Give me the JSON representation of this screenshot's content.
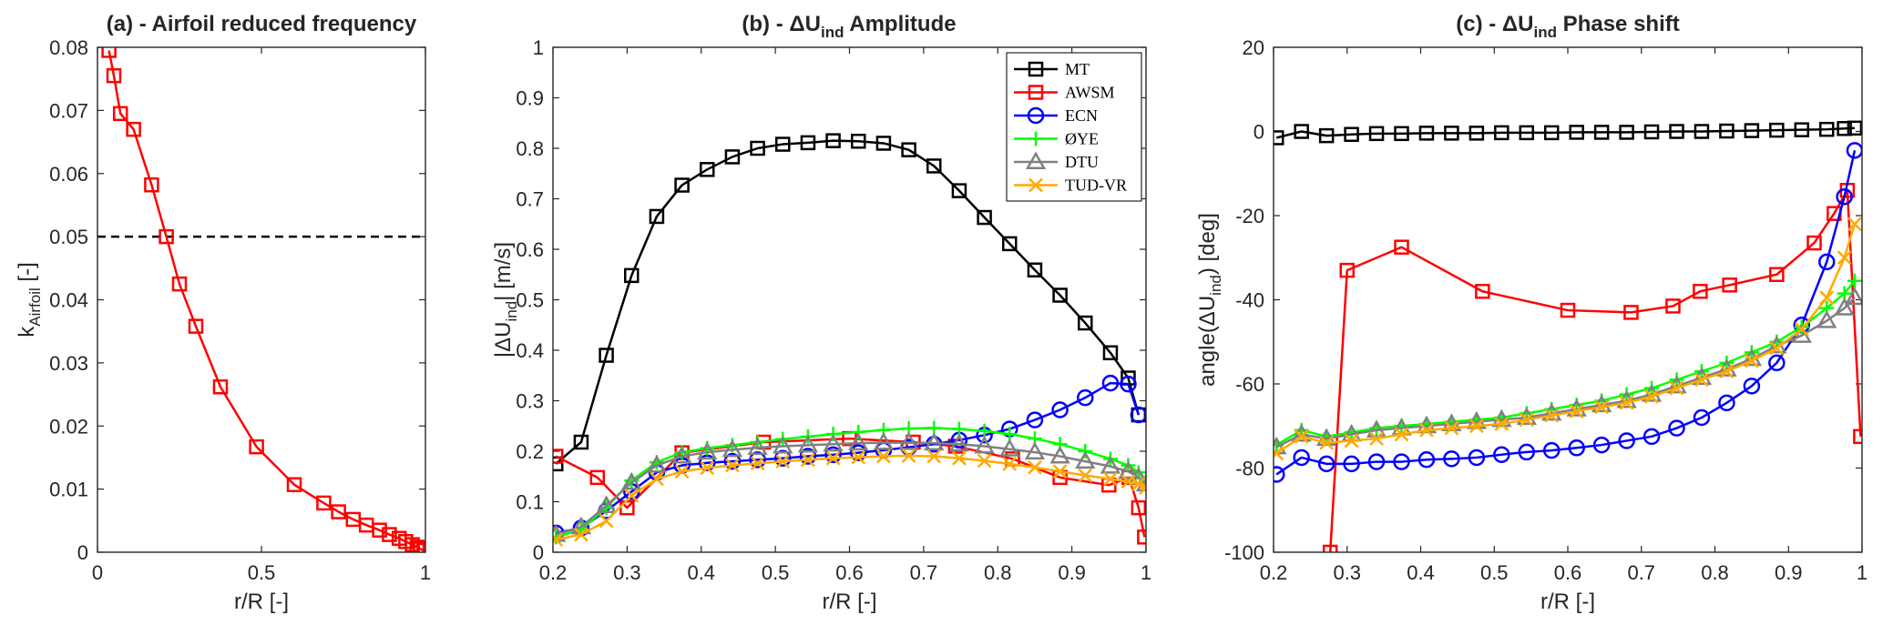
{
  "chart_data": [
    {
      "type": "line",
      "title": "(a) - Airfoil reduced frequency",
      "xlabel": "r/R [-]",
      "ylabel": "k",
      "ylabel_sub": "Airfoil",
      "ylabel_suffix": " [-]",
      "xlim": [
        0,
        1
      ],
      "ylim": [
        0,
        0.08
      ],
      "xticks": [
        0,
        0.5,
        1
      ],
      "xtick_labels": [
        "0",
        "0.5",
        "1"
      ],
      "yticks": [
        0,
        0.01,
        0.02,
        0.03,
        0.04,
        0.05,
        0.06,
        0.07,
        0.08
      ],
      "ytick_labels": [
        "0",
        "0.01",
        "0.02",
        "0.03",
        "0.04",
        "0.05",
        "0.06",
        "0.07",
        "0.08"
      ],
      "grid": false,
      "legend": false,
      "hline": {
        "y": 0.05,
        "color": "#000000",
        "style": "dashed"
      },
      "series": [
        {
          "name": "Airfoil reduced frequency",
          "color": "#ff0000",
          "marker": "square",
          "x": [
            0.035,
            0.05,
            0.07,
            0.11,
            0.165,
            0.21,
            0.25,
            0.3,
            0.375,
            0.485,
            0.6,
            0.69,
            0.735,
            0.78,
            0.82,
            0.86,
            0.89,
            0.92,
            0.94,
            0.96,
            0.975,
            0.985,
            0.995
          ],
          "y": [
            0.0795,
            0.0755,
            0.0695,
            0.067,
            0.0582,
            0.05,
            0.0425,
            0.0358,
            0.0262,
            0.0167,
            0.0107,
            0.0078,
            0.0064,
            0.0052,
            0.0043,
            0.0035,
            0.0028,
            0.0022,
            0.0017,
            0.0012,
            0.0008,
            0.0005,
            0.0003
          ]
        }
      ]
    },
    {
      "type": "line",
      "title_prefix": "(b) - ",
      "title_delta": "ΔU",
      "title_sub": "ind",
      "title_suffix": " Amplitude",
      "xlabel": "r/R [-]",
      "ylabel_prefix": "|ΔU",
      "ylabel_sub": "ind",
      "ylabel_suffix": "| [m/s]",
      "xlim": [
        0.2,
        1
      ],
      "ylim": [
        0,
        1
      ],
      "xticks": [
        0.2,
        0.3,
        0.4,
        0.5,
        0.6,
        0.7,
        0.8,
        0.9,
        1
      ],
      "xtick_labels": [
        "0.2",
        "0.3",
        "0.4",
        "0.5",
        "0.6",
        "0.7",
        "0.8",
        "0.9",
        "1"
      ],
      "yticks": [
        0,
        0.1,
        0.2,
        0.3,
        0.4,
        0.5,
        0.6,
        0.7,
        0.8,
        0.9,
        1
      ],
      "ytick_labels": [
        "0",
        "0.1",
        "0.2",
        "0.3",
        "0.4",
        "0.5",
        "0.6",
        "0.7",
        "0.8",
        "0.9",
        "1"
      ],
      "grid": false,
      "legend": "top-right",
      "series": [
        {
          "name": "MT",
          "color": "#000000",
          "marker": "square",
          "x": [
            0.204,
            0.238,
            0.272,
            0.306,
            0.34,
            0.374,
            0.408,
            0.442,
            0.476,
            0.51,
            0.544,
            0.578,
            0.612,
            0.646,
            0.68,
            0.714,
            0.748,
            0.782,
            0.816,
            0.85,
            0.884,
            0.918,
            0.952,
            0.976,
            0.99
          ],
          "y": [
            0.175,
            0.218,
            0.39,
            0.548,
            0.665,
            0.727,
            0.758,
            0.783,
            0.8,
            0.808,
            0.811,
            0.815,
            0.814,
            0.81,
            0.797,
            0.765,
            0.716,
            0.663,
            0.611,
            0.559,
            0.509,
            0.454,
            0.395,
            0.345,
            0.272
          ]
        },
        {
          "name": "AWSM",
          "color": "#ff0000",
          "marker": "square",
          "x": [
            0.204,
            0.26,
            0.3,
            0.374,
            0.484,
            0.6,
            0.686,
            0.743,
            0.82,
            0.884,
            0.95,
            0.977,
            0.99,
            0.998
          ],
          "y": [
            0.19,
            0.148,
            0.088,
            0.197,
            0.218,
            0.225,
            0.218,
            0.21,
            0.185,
            0.148,
            0.133,
            0.148,
            0.088,
            0.03
          ]
        },
        {
          "name": "ECN",
          "color": "#0000ff",
          "marker": "circle",
          "x": [
            0.204,
            0.238,
            0.272,
            0.306,
            0.34,
            0.374,
            0.408,
            0.442,
            0.476,
            0.51,
            0.544,
            0.578,
            0.612,
            0.646,
            0.68,
            0.714,
            0.748,
            0.782,
            0.816,
            0.85,
            0.884,
            0.918,
            0.952,
            0.976,
            0.99
          ],
          "y": [
            0.038,
            0.048,
            0.082,
            0.12,
            0.158,
            0.172,
            0.177,
            0.18,
            0.183,
            0.186,
            0.19,
            0.193,
            0.197,
            0.202,
            0.208,
            0.214,
            0.222,
            0.232,
            0.244,
            0.262,
            0.282,
            0.306,
            0.335,
            0.333,
            0.272
          ]
        },
        {
          "name": "ØYE",
          "color": "#00ff00",
          "marker": "plus",
          "x": [
            0.204,
            0.238,
            0.272,
            0.306,
            0.34,
            0.374,
            0.408,
            0.442,
            0.476,
            0.51,
            0.544,
            0.578,
            0.612,
            0.646,
            0.68,
            0.714,
            0.748,
            0.782,
            0.816,
            0.85,
            0.884,
            0.918,
            0.952,
            0.976,
            0.99,
            1.0
          ],
          "y": [
            0.03,
            0.045,
            0.088,
            0.142,
            0.178,
            0.198,
            0.206,
            0.212,
            0.218,
            0.224,
            0.229,
            0.234,
            0.238,
            0.242,
            0.245,
            0.246,
            0.244,
            0.24,
            0.234,
            0.225,
            0.214,
            0.2,
            0.185,
            0.172,
            0.158,
            0.14
          ]
        },
        {
          "name": "DTU",
          "color": "#808080",
          "marker": "triangle",
          "x": [
            0.204,
            0.238,
            0.272,
            0.306,
            0.34,
            0.374,
            0.408,
            0.442,
            0.476,
            0.51,
            0.544,
            0.578,
            0.612,
            0.646,
            0.68,
            0.714,
            0.748,
            0.782,
            0.816,
            0.85,
            0.884,
            0.918,
            0.952,
            0.976,
            0.99,
            1.0
          ],
          "y": [
            0.035,
            0.05,
            0.092,
            0.138,
            0.172,
            0.19,
            0.198,
            0.203,
            0.207,
            0.21,
            0.212,
            0.214,
            0.216,
            0.217,
            0.217,
            0.216,
            0.214,
            0.21,
            0.204,
            0.198,
            0.19,
            0.18,
            0.17,
            0.16,
            0.148,
            0.135
          ]
        },
        {
          "name": "TUD-VR",
          "color": "#ffaa00",
          "marker": "x",
          "x": [
            0.204,
            0.238,
            0.272,
            0.306,
            0.34,
            0.374,
            0.408,
            0.442,
            0.476,
            0.51,
            0.544,
            0.578,
            0.612,
            0.646,
            0.68,
            0.714,
            0.748,
            0.782,
            0.816,
            0.85,
            0.884,
            0.918,
            0.952,
            0.976,
            0.99,
            1.0
          ],
          "y": [
            0.025,
            0.035,
            0.062,
            0.112,
            0.145,
            0.16,
            0.167,
            0.172,
            0.176,
            0.18,
            0.183,
            0.186,
            0.188,
            0.19,
            0.191,
            0.19,
            0.186,
            0.181,
            0.175,
            0.168,
            0.16,
            0.152,
            0.145,
            0.14,
            0.135,
            0.128
          ]
        }
      ]
    },
    {
      "type": "line",
      "title_prefix": "(c) - ",
      "title_delta": "ΔU",
      "title_sub": "ind",
      "title_suffix": " Phase shift",
      "xlabel": "r/R [-]",
      "ylabel_prefix": "angle(ΔU",
      "ylabel_sub": "ind",
      "ylabel_suffix": ") [deg]",
      "xlim": [
        0.2,
        1
      ],
      "ylim": [
        -100,
        20
      ],
      "xticks": [
        0.2,
        0.3,
        0.4,
        0.5,
        0.6,
        0.7,
        0.8,
        0.9,
        1
      ],
      "xtick_labels": [
        "0.2",
        "0.3",
        "0.4",
        "0.5",
        "0.6",
        "0.7",
        "0.8",
        "0.9",
        "1"
      ],
      "yticks": [
        -100,
        -80,
        -60,
        -40,
        -20,
        0,
        20
      ],
      "ytick_labels": [
        "-100",
        "-80",
        "-60",
        "-40",
        "-20",
        "0",
        "20"
      ],
      "grid": false,
      "legend": false,
      "series": [
        {
          "name": "MT",
          "color": "#000000",
          "marker": "square",
          "x": [
            0.204,
            0.238,
            0.272,
            0.306,
            0.34,
            0.374,
            0.408,
            0.442,
            0.476,
            0.51,
            0.544,
            0.578,
            0.612,
            0.646,
            0.68,
            0.714,
            0.748,
            0.782,
            0.816,
            0.85,
            0.884,
            0.918,
            0.952,
            0.976,
            0.99
          ],
          "y": [
            -1.5,
            0,
            -1,
            -0.7,
            -0.5,
            -0.5,
            -0.4,
            -0.4,
            -0.4,
            -0.3,
            -0.3,
            -0.3,
            -0.2,
            -0.2,
            -0.2,
            -0.1,
            0,
            0,
            0.1,
            0.2,
            0.3,
            0.4,
            0.5,
            0.7,
            0.8
          ]
        },
        {
          "name": "AWSM",
          "color": "#ff0000",
          "marker": "square",
          "x": [
            0.277,
            0.3,
            0.374,
            0.484,
            0.6,
            0.686,
            0.743,
            0.78,
            0.82,
            0.884,
            0.935,
            0.962,
            0.98,
            0.998
          ],
          "y": [
            -100,
            -33,
            -27.5,
            -38,
            -42.5,
            -43,
            -41.5,
            -38,
            -36.5,
            -34,
            -26.5,
            -19.5,
            -14,
            -72.5
          ]
        },
        {
          "name": "ECN",
          "color": "#0000ff",
          "marker": "circle",
          "x": [
            0.204,
            0.238,
            0.272,
            0.306,
            0.34,
            0.374,
            0.408,
            0.442,
            0.476,
            0.51,
            0.544,
            0.578,
            0.612,
            0.646,
            0.68,
            0.714,
            0.748,
            0.782,
            0.816,
            0.85,
            0.884,
            0.918,
            0.952,
            0.976,
            0.99
          ],
          "y": [
            -81.5,
            -77.5,
            -79,
            -79,
            -78.5,
            -78.5,
            -78,
            -77.8,
            -77.5,
            -76.8,
            -76.2,
            -75.8,
            -75.2,
            -74.5,
            -73.5,
            -72.5,
            -70.5,
            -68,
            -64.5,
            -60.5,
            -55,
            -46,
            -31,
            -15.5,
            -4.5
          ]
        },
        {
          "name": "ØYE",
          "color": "#00ff00",
          "marker": "plus",
          "x": [
            0.204,
            0.238,
            0.272,
            0.306,
            0.34,
            0.374,
            0.408,
            0.442,
            0.476,
            0.51,
            0.544,
            0.578,
            0.612,
            0.646,
            0.68,
            0.714,
            0.748,
            0.782,
            0.816,
            0.85,
            0.884,
            0.918,
            0.952,
            0.976,
            0.99
          ],
          "y": [
            -74.5,
            -71,
            -72.5,
            -71.5,
            -70.5,
            -70,
            -69.5,
            -69,
            -68.5,
            -68,
            -67,
            -66,
            -65,
            -64,
            -62.5,
            -61,
            -59,
            -57,
            -55,
            -52.5,
            -50,
            -46.5,
            -42,
            -38.5,
            -35.5
          ]
        },
        {
          "name": "DTU",
          "color": "#808080",
          "marker": "triangle",
          "x": [
            0.204,
            0.238,
            0.272,
            0.306,
            0.34,
            0.374,
            0.408,
            0.442,
            0.476,
            0.51,
            0.544,
            0.578,
            0.612,
            0.646,
            0.68,
            0.714,
            0.748,
            0.782,
            0.816,
            0.85,
            0.884,
            0.918,
            0.952,
            0.976,
            0.99
          ],
          "y": [
            -75,
            -72,
            -73,
            -72,
            -71,
            -70.5,
            -70,
            -69.5,
            -69,
            -68.5,
            -68,
            -67,
            -66,
            -65,
            -64,
            -62.5,
            -60.5,
            -58.5,
            -56.5,
            -54,
            -51,
            -48.5,
            -45,
            -42,
            -39.5
          ]
        },
        {
          "name": "TUD-VR",
          "color": "#ffaa00",
          "marker": "x",
          "x": [
            0.204,
            0.238,
            0.272,
            0.306,
            0.34,
            0.374,
            0.408,
            0.442,
            0.476,
            0.51,
            0.544,
            0.578,
            0.612,
            0.646,
            0.68,
            0.714,
            0.748,
            0.782,
            0.816,
            0.85,
            0.884,
            0.918,
            0.952,
            0.976,
            0.99
          ],
          "y": [
            -76.5,
            -72.5,
            -74,
            -73.5,
            -73,
            -72,
            -71,
            -70.5,
            -70,
            -69.5,
            -68.5,
            -67.5,
            -66.5,
            -65.5,
            -64.5,
            -63,
            -61,
            -59,
            -57,
            -54.5,
            -51.5,
            -47,
            -39.5,
            -30,
            -22
          ]
        }
      ]
    }
  ]
}
